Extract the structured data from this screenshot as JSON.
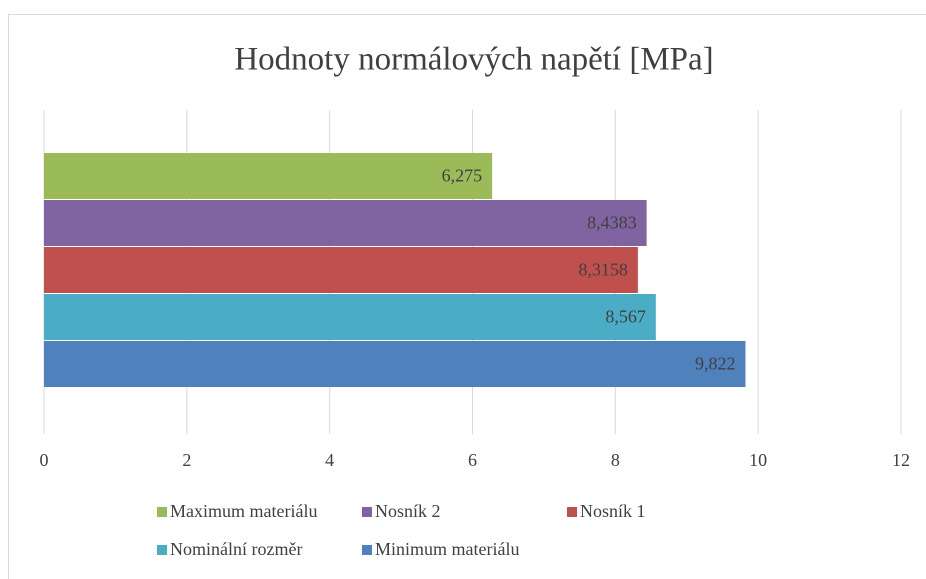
{
  "chart_data": {
    "type": "barh",
    "title": "Hodnoty normálových napětí [MPa]",
    "categories": [
      null
    ],
    "series": [
      {
        "name": "Maximum materiálu",
        "color": "#9bbb59",
        "values": [
          6.275
        ],
        "value_labels": [
          "6,275"
        ]
      },
      {
        "name": "Nosník 2",
        "color": "#8064a2",
        "values": [
          8.4383
        ],
        "value_labels": [
          "8,4383"
        ]
      },
      {
        "name": "Nosník 1",
        "color": "#c0504d",
        "values": [
          8.3158
        ],
        "value_labels": [
          "8,3158"
        ]
      },
      {
        "name": "Nominální rozměr",
        "color": "#4bacc6",
        "values": [
          8.567
        ],
        "value_labels": [
          "8,567"
        ]
      },
      {
        "name": "Minimum materiálu",
        "color": "#4f81bd",
        "values": [
          9.822
        ],
        "value_labels": [
          "9,822"
        ]
      }
    ],
    "xlim": [
      0,
      12
    ],
    "xticks": [
      0,
      2,
      4,
      6,
      8,
      10,
      12
    ],
    "grid": true,
    "legend": "bottom"
  }
}
